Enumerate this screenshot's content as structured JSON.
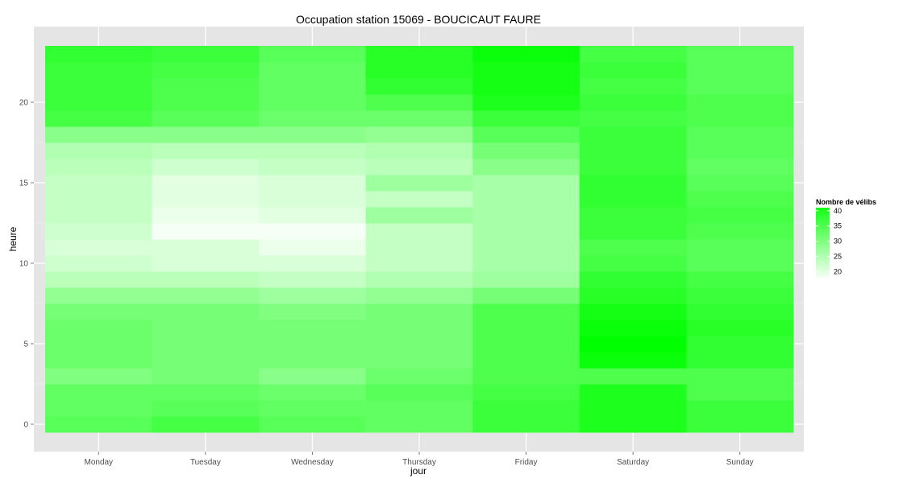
{
  "chart_data": {
    "type": "heatmap",
    "title": "Occupation station 15069 - BOUCICAUT FAURE",
    "xlabel": "jour",
    "ylabel": "heure",
    "x_categories": [
      "Monday",
      "Tuesday",
      "Wednesday",
      "Thursday",
      "Friday",
      "Saturday",
      "Sunday"
    ],
    "y_values": [
      0,
      1,
      2,
      3,
      4,
      5,
      6,
      7,
      8,
      9,
      10,
      11,
      12,
      13,
      14,
      15,
      16,
      17,
      18,
      19,
      20,
      21,
      22,
      23
    ],
    "y_ticks": [
      0,
      5,
      10,
      15,
      20
    ],
    "ylim": [
      -0.5,
      23.5
    ],
    "grid": true,
    "color_scale": {
      "low": "#ffffff",
      "high": "#00ff00",
      "min": 17,
      "max": 43
    },
    "legend": {
      "title": "Nombre de vélibs",
      "ticks": [
        20,
        25,
        30,
        35,
        40
      ],
      "position": "right"
    },
    "values": [
      [
        34,
        36,
        34,
        33,
        37,
        40,
        37
      ],
      [
        33,
        34,
        33,
        33,
        37,
        40,
        37
      ],
      [
        33,
        33,
        32,
        34,
        36,
        40,
        35
      ],
      [
        30,
        31,
        29,
        32,
        35,
        35,
        35
      ],
      [
        32,
        31,
        31,
        31,
        35,
        42,
        38
      ],
      [
        32,
        31,
        31,
        31,
        35,
        43,
        38
      ],
      [
        32,
        31,
        31,
        31,
        35,
        42,
        39
      ],
      [
        31,
        31,
        30,
        31,
        35,
        41,
        38
      ],
      [
        28,
        28,
        27,
        28,
        31,
        39,
        37
      ],
      [
        24,
        24,
        23,
        25,
        27,
        38,
        36
      ],
      [
        22,
        21,
        21,
        23,
        26,
        36,
        34
      ],
      [
        21,
        21,
        19,
        23,
        26,
        35,
        34
      ],
      [
        22,
        18,
        18,
        23,
        26,
        37,
        35
      ],
      [
        23,
        19,
        20,
        27,
        26,
        37,
        36
      ],
      [
        23,
        20,
        21,
        23,
        26,
        38,
        35
      ],
      [
        23,
        20,
        21,
        27,
        26,
        38,
        34
      ],
      [
        24,
        22,
        23,
        24,
        29,
        37,
        33
      ],
      [
        25,
        24,
        24,
        25,
        31,
        37,
        34
      ],
      [
        29,
        29,
        29,
        28,
        34,
        37,
        34
      ],
      [
        36,
        34,
        32,
        32,
        37,
        36,
        35
      ],
      [
        37,
        35,
        33,
        35,
        40,
        37,
        35
      ],
      [
        37,
        35,
        33,
        38,
        41,
        36,
        34
      ],
      [
        37,
        36,
        33,
        39,
        41,
        37,
        34
      ],
      [
        38,
        37,
        34,
        39,
        42,
        36,
        34
      ]
    ]
  }
}
